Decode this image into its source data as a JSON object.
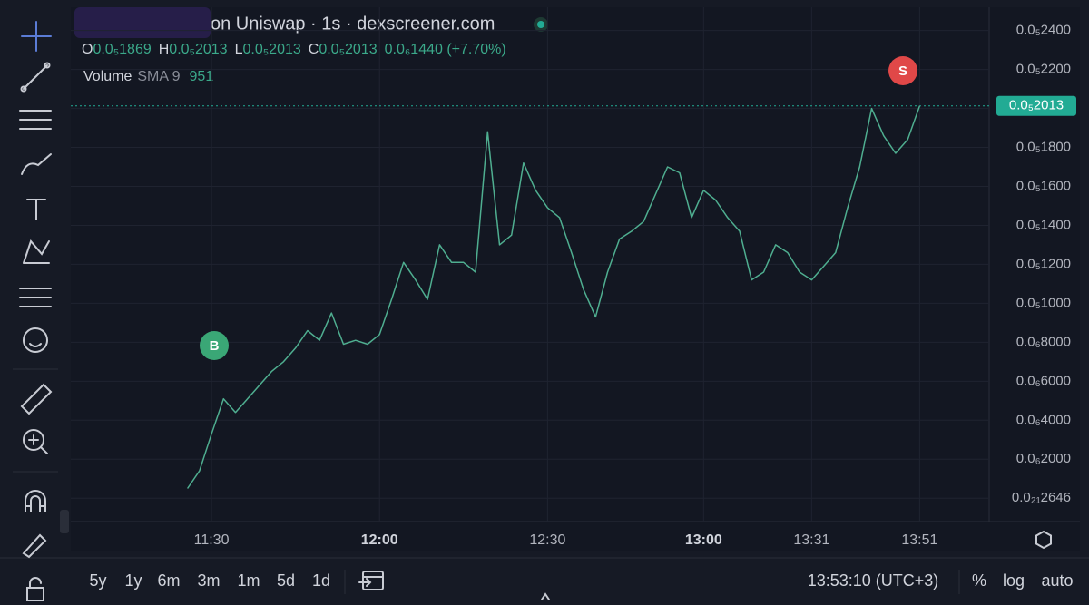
{
  "chart_data": {
    "type": "line",
    "title": "on Uniswap · 1s · dexscreener.com",
    "ohlc": [
      {
        "label": "O",
        "value": "0.0₅1869"
      },
      {
        "label": "H",
        "value": "0.0₅2013"
      },
      {
        "label": "L",
        "value": "0.0₅2013"
      },
      {
        "label": "C",
        "value": "0.0₅2013"
      }
    ],
    "change": "0.0₆1440 (+7.70%)",
    "volume": {
      "label": "Volume",
      "indicator": "SMA 9",
      "value": "951"
    },
    "categories": [
      null,
      null,
      "11:30",
      null,
      null,
      null,
      null,
      null,
      null,
      null,
      null,
      null,
      null,
      null,
      null,
      null,
      "12:00",
      null,
      null,
      null,
      null,
      null,
      null,
      null,
      null,
      null,
      null,
      null,
      null,
      null,
      "12:30",
      null,
      null,
      null,
      null,
      null,
      null,
      null,
      null,
      null,
      null,
      null,
      null,
      "13:00",
      null,
      null,
      null,
      null,
      null,
      null,
      null,
      null,
      "13:31",
      null,
      null,
      null,
      null,
      null,
      null,
      null,
      null,
      "13:51"
    ],
    "series": [
      {
        "name": "Price",
        "color": "#4fae90",
        "values": [
          5e-08,
          1.4e-07,
          3.3e-07,
          5.1e-07,
          4.4e-07,
          5.1e-07,
          5.8e-07,
          6.5e-07,
          7e-07,
          7.7e-07,
          8.6e-07,
          8.1e-07,
          9.5e-07,
          7.9e-07,
          8.1e-07,
          7.9e-07,
          8.4e-07,
          1.02e-06,
          1.21e-06,
          1.12e-06,
          1.02e-06,
          1.3e-06,
          1.21e-06,
          1.21e-06,
          1.16e-06,
          1.88e-06,
          1.3e-06,
          1.35e-06,
          1.72e-06,
          1.58e-06,
          1.49e-06,
          1.44e-06,
          1.26e-06,
          1.07e-06,
          9.3e-07,
          1.16e-06,
          1.33e-06,
          1.37e-06,
          1.42e-06,
          1.56e-06,
          1.7e-06,
          1.67e-06,
          1.44e-06,
          1.58e-06,
          1.53e-06,
          1.44e-06,
          1.37e-06,
          1.12e-06,
          1.16e-06,
          1.3e-06,
          1.26e-06,
          1.16e-06,
          1.12e-06,
          1.19e-06,
          1.26e-06,
          1.49e-06,
          1.7e-06,
          2e-06,
          1.86e-06,
          1.77e-06,
          1.84e-06,
          2.013e-06
        ]
      }
    ],
    "ylim": [
      -1.2e-07,
      2.51e-06
    ],
    "yticks": [
      {
        "value": 2.4e-06,
        "label": "0.0₅2400"
      },
      {
        "value": 2.2e-06,
        "label": "0.0₅2200"
      },
      {
        "value": 2e-06,
        "label": "0.0₅2000"
      },
      {
        "value": 1.8e-06,
        "label": "0.0₅1800"
      },
      {
        "value": 1.6e-06,
        "label": "0.0₅1600"
      },
      {
        "value": 1.4e-06,
        "label": "0.0₅1400"
      },
      {
        "value": 1.2e-06,
        "label": "0.0₅1200"
      },
      {
        "value": 1e-06,
        "label": "0.0₅1000"
      },
      {
        "value": 8e-07,
        "label": "0.0₆8000"
      },
      {
        "value": 6e-07,
        "label": "0.0₆6000"
      },
      {
        "value": 4e-07,
        "label": "0.0₆4000"
      },
      {
        "value": 2e-07,
        "label": "0.0₆2000"
      },
      {
        "value": 2.646e-22,
        "label": "0.0₂₁2646"
      }
    ],
    "price_line": {
      "value": 2.013e-06,
      "label": "0.0₅2013"
    },
    "grid": true,
    "markers": [
      {
        "text": "B",
        "color": "#3aa776"
      },
      {
        "text": "S",
        "color": "#e04848"
      }
    ]
  },
  "toolbar": {
    "ranges": [
      "5y",
      "1y",
      "6m",
      "3m",
      "1m",
      "5d",
      "1d"
    ],
    "time": "13:53:10 (UTC+3)",
    "options": [
      "%",
      "log",
      "auto"
    ]
  }
}
